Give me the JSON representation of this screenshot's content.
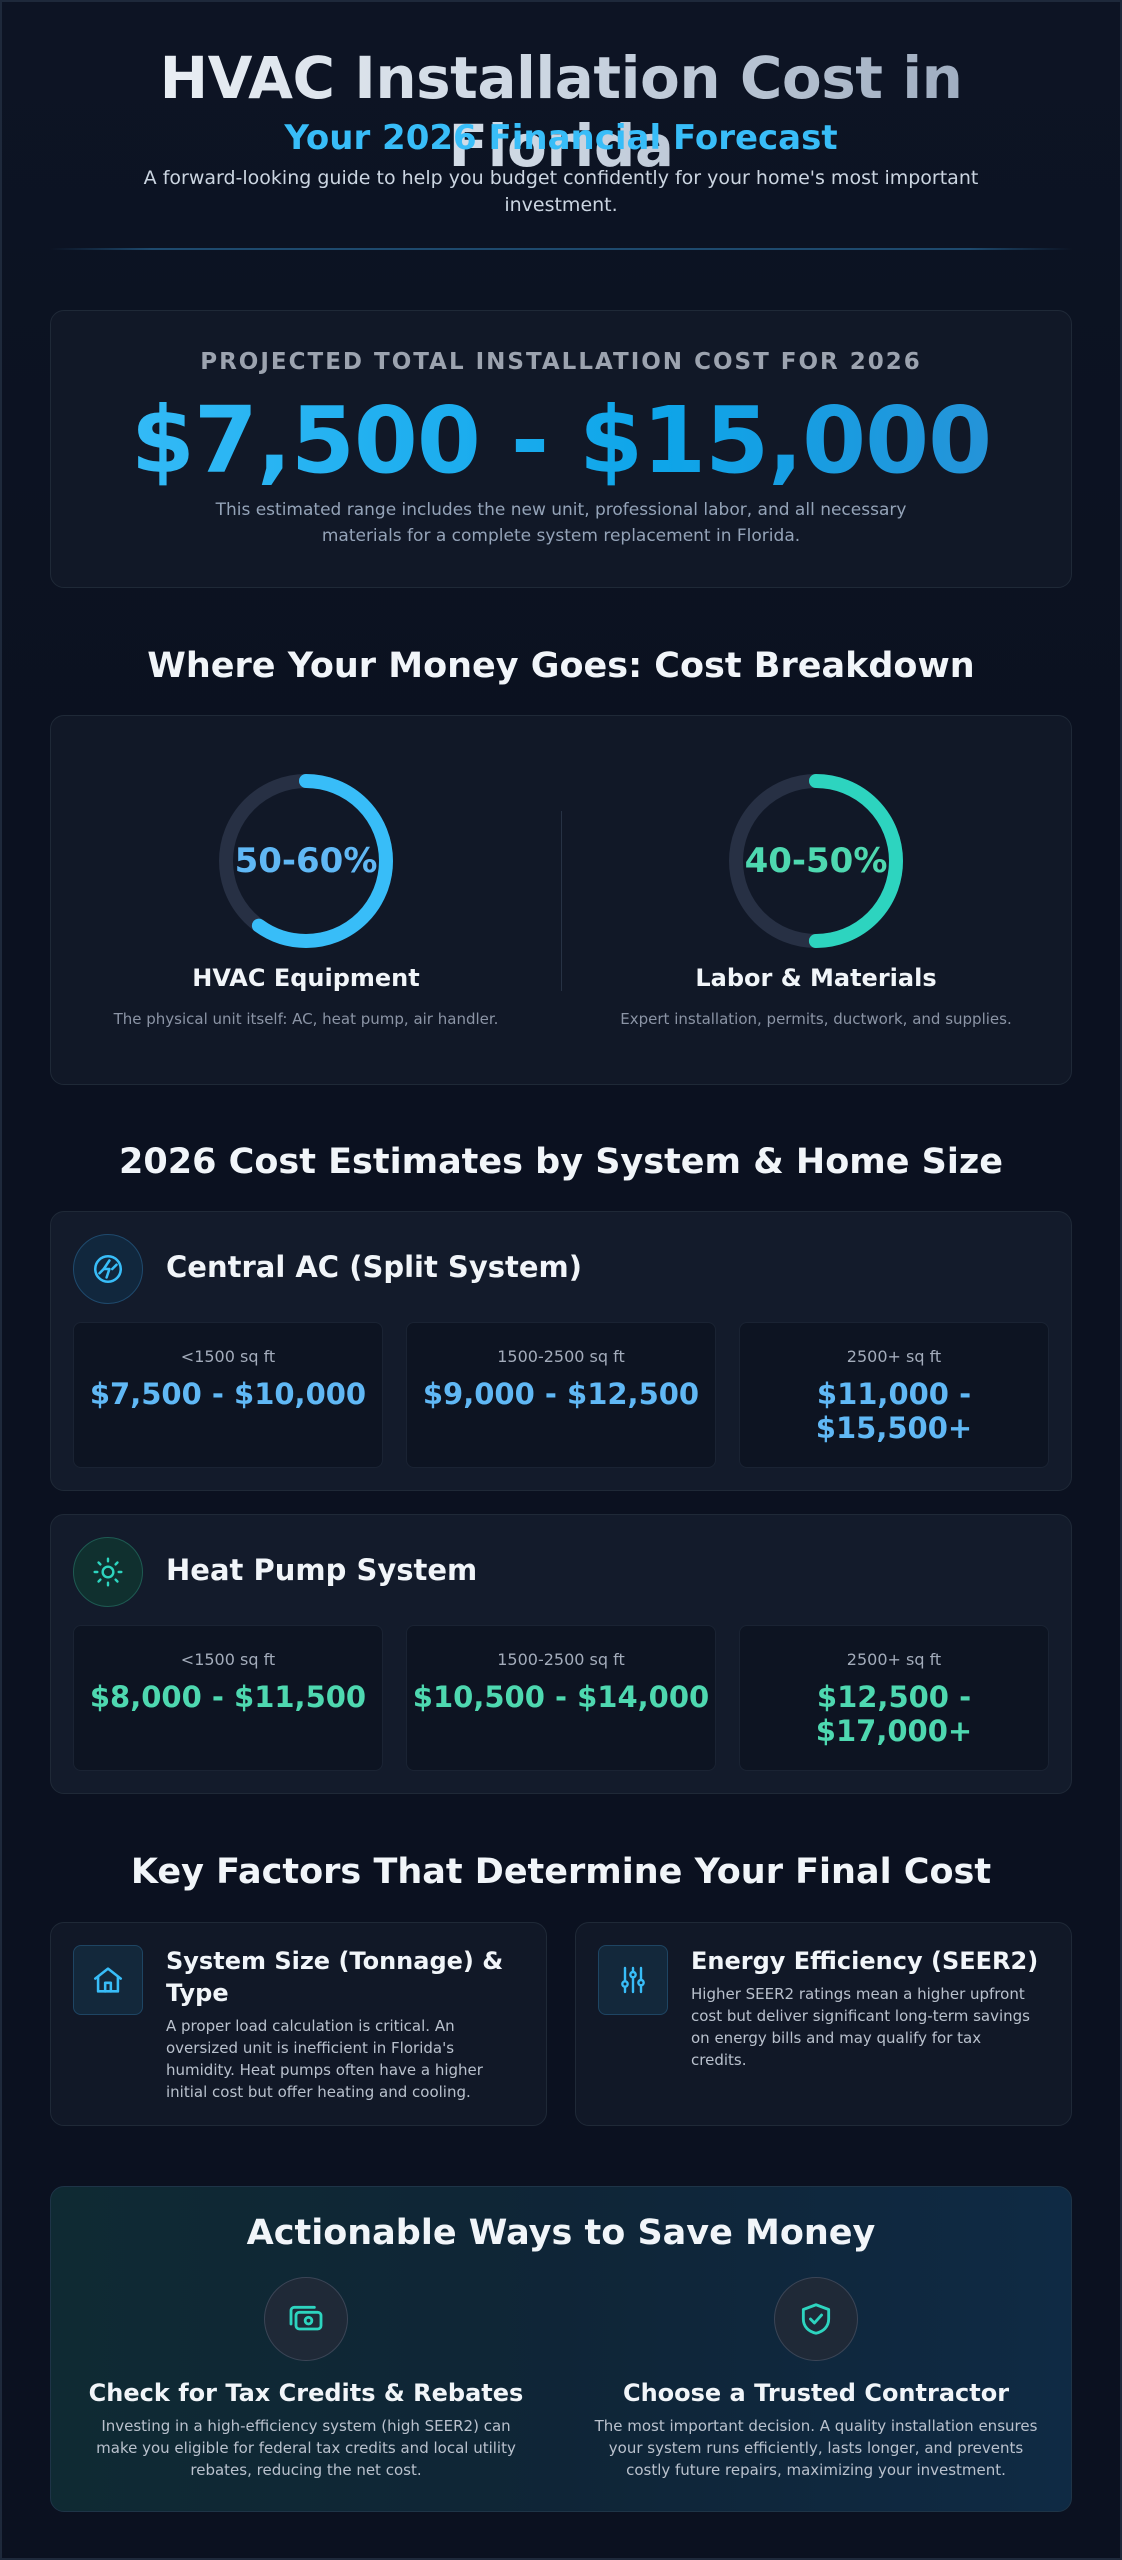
{
  "header": {
    "title": "HVAC Installation Cost in Florida",
    "subtitle": "Your 2026 Financial Forecast",
    "intro": "A forward-looking guide to help you budget confidently for your home's most important investment."
  },
  "total": {
    "label": "PROJECTED TOTAL INSTALLATION COST FOR 2026",
    "value": "$7,500 - $15,000",
    "note": "This estimated range includes the new unit, professional labor, and all necessary materials for a complete system replacement in Florida."
  },
  "breakdown": {
    "title": "Where Your Money Goes: Cost Breakdown",
    "items": [
      {
        "percent": "50-60%",
        "fill": 0.6,
        "name": "HVAC Equipment",
        "desc": "The physical unit itself: AC, heat pump, air handler.",
        "color": "#38bdf8"
      },
      {
        "percent": "40-50%",
        "fill": 0.5,
        "name": "Labor & Materials",
        "desc": "Expert installation, permits, ductwork, and supplies.",
        "color": "#2dd4bf"
      }
    ]
  },
  "estimates": {
    "title": "2026 Cost Estimates by System & Home Size",
    "systems": [
      {
        "name": "Central AC (Split System)",
        "icon": "bolt-icon",
        "color": "#60b8f5",
        "sizes": [
          {
            "label": "<1500 sq ft",
            "price": "$7,500 - $10,000"
          },
          {
            "label": "1500-2500 sq ft",
            "price": "$9,000 - $12,500"
          },
          {
            "label": "2500+ sq ft",
            "price": "$11,000 - $15,500+"
          }
        ]
      },
      {
        "name": "Heat Pump System",
        "icon": "sun-icon",
        "color": "#4ed8b0",
        "sizes": [
          {
            "label": "<1500 sq ft",
            "price": "$8,000 - $11,500"
          },
          {
            "label": "1500-2500 sq ft",
            "price": "$10,500 - $14,000"
          },
          {
            "label": "2500+ sq ft",
            "price": "$12,500 - $17,000+"
          }
        ]
      }
    ]
  },
  "factors": {
    "title": "Key Factors That Determine Your Final Cost",
    "items": [
      {
        "icon": "home-icon",
        "title": "System Size (Tonnage) & Type",
        "text": "A proper load calculation is critical. An oversized unit is inefficient in Florida's humidity. Heat pumps often have a higher initial cost but offer heating and cooling."
      },
      {
        "icon": "sliders-icon",
        "title": "Energy Efficiency (SEER2)",
        "text": "Higher SEER2 ratings mean a higher upfront cost but deliver significant long-term savings on energy bills and may qualify for tax credits."
      }
    ]
  },
  "savings": {
    "title": "Actionable Ways to Save Money",
    "items": [
      {
        "icon": "cash-icon",
        "title": "Check for Tax Credits & Rebates",
        "text": "Investing in a high-efficiency system (high SEER2) can make you eligible for federal tax credits and local utility rebates, reducing the net cost."
      },
      {
        "icon": "shield-check-icon",
        "title": "Choose a Trusted Contractor",
        "text": "The most important decision. A quality installation ensures your system runs efficiently, lasts longer, and prevents costly future repairs, maximizing your investment."
      }
    ]
  },
  "colors": {
    "accent_blue": "#38bdf8",
    "accent_teal": "#2dd4bf",
    "background": "#0b1120"
  }
}
